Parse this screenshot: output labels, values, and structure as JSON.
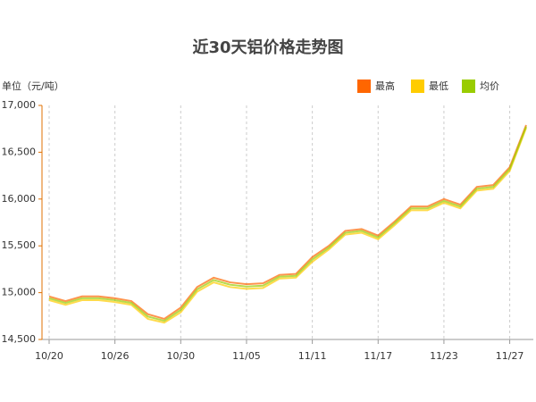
{
  "chart_data": {
    "type": "line",
    "title": "近30天铝价格走势图",
    "y_label": "单位（元/吨）",
    "categories": [
      "10/20",
      null,
      null,
      null,
      "10/26",
      null,
      null,
      null,
      "10/30",
      null,
      null,
      null,
      "11/05",
      null,
      null,
      null,
      "11/11",
      null,
      null,
      null,
      "11/17",
      null,
      null,
      null,
      "11/23",
      null,
      null,
      null,
      "11/27",
      null
    ],
    "series": [
      {
        "name": "最高",
        "color": "#ff6600",
        "values": [
          14960,
          14910,
          14960,
          14960,
          14940,
          14910,
          14770,
          14720,
          14840,
          15060,
          15160,
          15110,
          15090,
          15100,
          15190,
          15200,
          15380,
          15500,
          15660,
          15680,
          15610,
          15760,
          15920,
          15920,
          16000,
          15940,
          16130,
          16150,
          16340,
          16790
        ]
      },
      {
        "name": "最低",
        "color": "#ffcc00",
        "values": [
          14920,
          14870,
          14920,
          14920,
          14900,
          14870,
          14720,
          14680,
          14790,
          15010,
          15110,
          15060,
          15040,
          15050,
          15150,
          15160,
          15330,
          15460,
          15620,
          15640,
          15570,
          15720,
          15880,
          15880,
          15960,
          15900,
          16090,
          16110,
          16300,
          16760
        ]
      },
      {
        "name": "均价",
        "color": "#99cc00",
        "values": [
          14940,
          14890,
          14940,
          14940,
          14920,
          14890,
          14745,
          14700,
          14815,
          15035,
          15135,
          15085,
          15065,
          15075,
          15170,
          15180,
          15355,
          15480,
          15640,
          15660,
          15590,
          15740,
          15900,
          15900,
          15980,
          15920,
          16110,
          16130,
          16320,
          16775
        ]
      }
    ],
    "ylim": [
      14500,
      17000
    ],
    "yticks": [
      {
        "value": 14500,
        "label": "14,500"
      },
      {
        "value": 15000,
        "label": "15,000"
      },
      {
        "value": 15500,
        "label": "15,500"
      },
      {
        "value": 16000,
        "label": "16,000"
      },
      {
        "value": 16500,
        "label": "16,500"
      },
      {
        "value": 17000,
        "label": "17,000"
      }
    ],
    "grid": true
  }
}
